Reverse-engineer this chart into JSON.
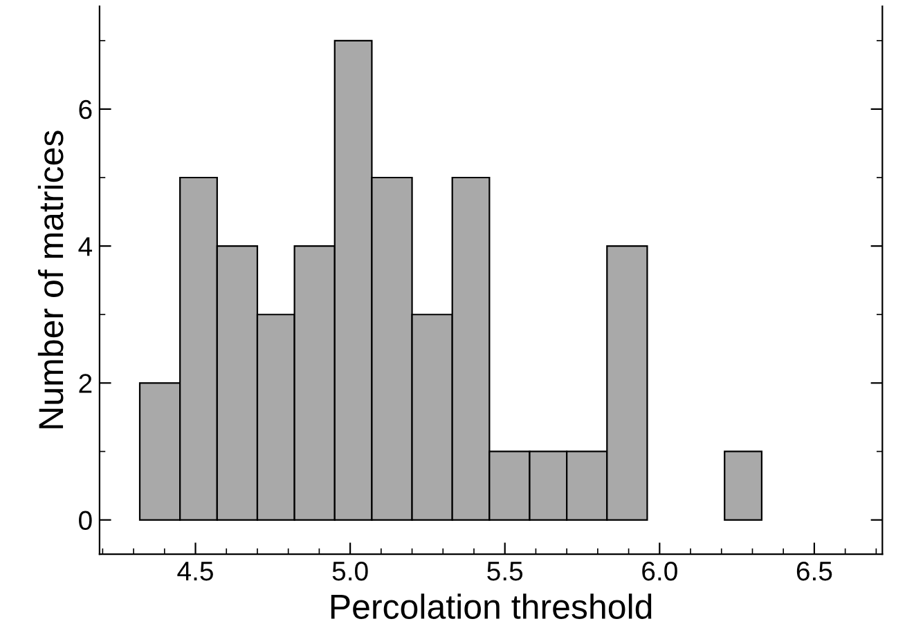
{
  "chart_data": {
    "type": "histogram",
    "xlabel": "Percolation threshold",
    "ylabel": "Number of matrices",
    "bins": [
      4.32,
      4.45,
      4.57,
      4.7,
      4.82,
      4.95,
      5.07,
      5.2,
      5.33,
      5.45,
      5.58,
      5.7,
      5.83,
      5.96,
      6.21,
      6.33
    ],
    "values": [
      2,
      5,
      4,
      3,
      4,
      7,
      5,
      3,
      5,
      1,
      1,
      1,
      4,
      0,
      1
    ],
    "color": "#a9a9a9",
    "xlim": [
      4.19,
      6.72
    ],
    "ylim": [
      -0.5,
      7.5
    ],
    "xticks": [
      {
        "value": 4.5,
        "label": "4.5"
      },
      {
        "value": 5.0,
        "label": "5.0"
      },
      {
        "value": 5.5,
        "label": "5.5"
      },
      {
        "value": 6.0,
        "label": "6.0"
      },
      {
        "value": 6.5,
        "label": "6.5"
      }
    ],
    "yticks": [
      0,
      2,
      4,
      6
    ],
    "grid": false,
    "legend": false
  }
}
